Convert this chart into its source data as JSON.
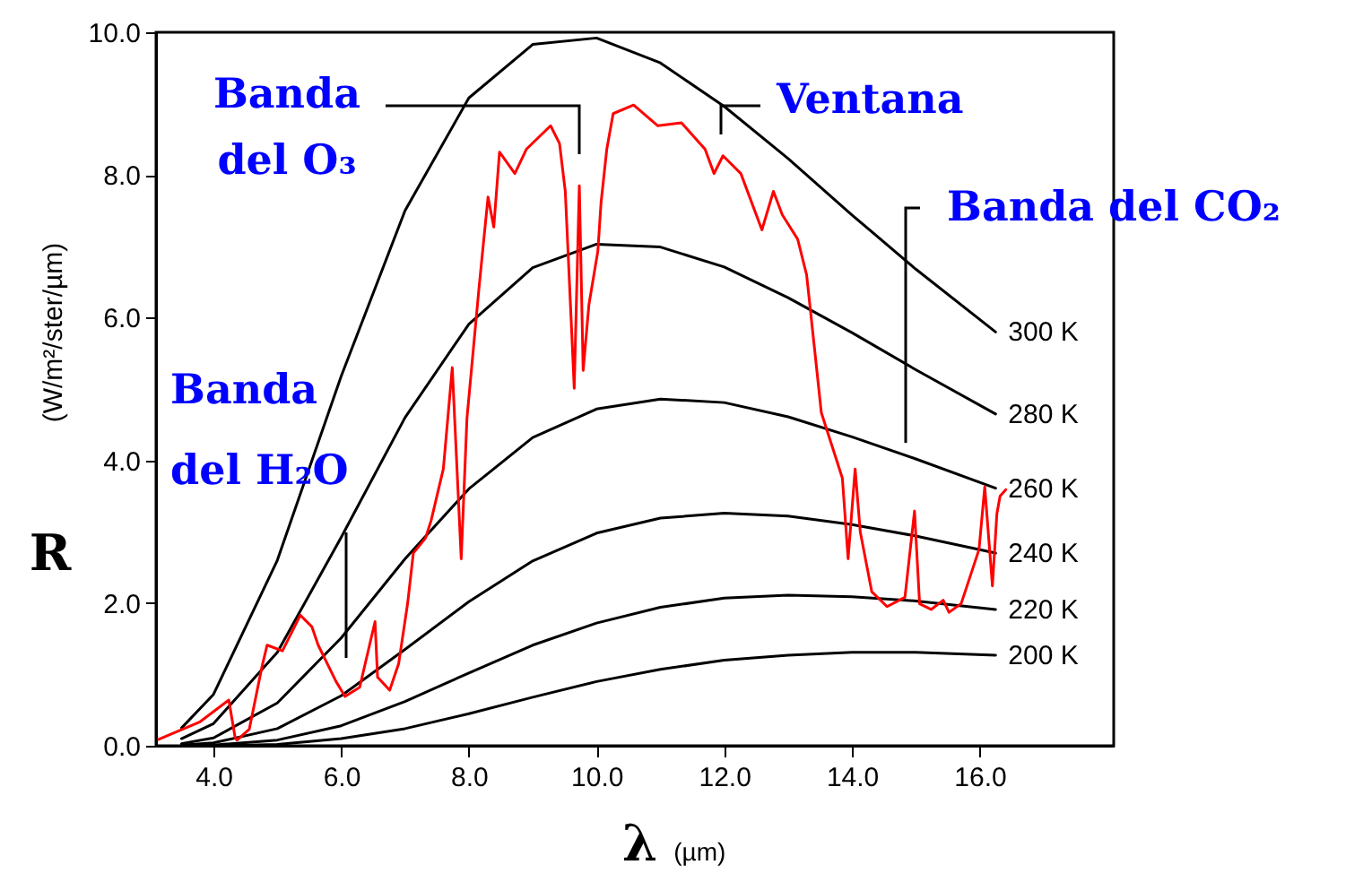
{
  "chart_data": {
    "type": "line",
    "xlabel": "λ (µm)",
    "ylabel": "(W/m²/ster/µm)",
    "xlim": [
      3.1,
      18.1
    ],
    "ylim": [
      0,
      10
    ],
    "xticks": [
      {
        "value": 4,
        "label": "4.0"
      },
      {
        "value": 6,
        "label": "6.0"
      },
      {
        "value": 8,
        "label": "8.0"
      },
      {
        "value": 10,
        "label": "10.0"
      },
      {
        "value": 12,
        "label": "12.0"
      },
      {
        "value": 14,
        "label": "14.0"
      },
      {
        "value": 16,
        "label": "16.0"
      }
    ],
    "yticks": [
      {
        "value": 0,
        "label": "0.0"
      },
      {
        "value": 2,
        "label": "2.0"
      },
      {
        "value": 4,
        "label": "4.0"
      },
      {
        "value": 6,
        "label": "6.0"
      },
      {
        "value": 8,
        "label": "8.0"
      },
      {
        "value": 10,
        "label": "10.0"
      }
    ],
    "x": [
      3.5,
      4,
      5,
      6,
      7,
      8,
      9,
      10,
      11,
      12,
      13,
      14,
      15,
      16.25
    ],
    "series": [
      {
        "name": "300 K",
        "color": "#000000",
        "values": [
          0.25,
          0.72,
          2.6,
          5.18,
          7.5,
          9.08,
          9.83,
          9.92,
          9.57,
          8.96,
          8.23,
          7.44,
          6.68,
          5.8
        ]
      },
      {
        "name": "280 K",
        "color": "#000000",
        "values": [
          0.1,
          0.31,
          1.31,
          2.92,
          4.6,
          5.91,
          6.7,
          7.03,
          6.99,
          6.71,
          6.28,
          5.79,
          5.27,
          4.65
        ]
      },
      {
        "name": "260 K",
        "color": "#000000",
        "values": [
          0.03,
          0.11,
          0.6,
          1.51,
          2.62,
          3.6,
          4.32,
          4.72,
          4.86,
          4.81,
          4.61,
          4.33,
          4.02,
          3.61
        ]
      },
      {
        "name": "240 K",
        "color": "#000000",
        "values": [
          0.01,
          0.04,
          0.24,
          0.7,
          1.35,
          2.02,
          2.59,
          2.98,
          3.19,
          3.26,
          3.22,
          3.1,
          2.94,
          2.7
        ]
      },
      {
        "name": "220 K",
        "color": "#000000",
        "values": [
          0,
          0.01,
          0.08,
          0.28,
          0.62,
          1.02,
          1.41,
          1.72,
          1.94,
          2.07,
          2.11,
          2.09,
          2.03,
          1.91
        ]
      },
      {
        "name": "200 K",
        "color": "#000000",
        "values": [
          0,
          0,
          0.02,
          0.1,
          0.24,
          0.45,
          0.68,
          0.9,
          1.07,
          1.2,
          1.27,
          1.31,
          1.31,
          1.27
        ]
      },
      {
        "color": "#ff0000",
        "x": [
          3.14,
          3.78,
          4.24,
          4.34,
          4.37,
          4.56,
          4.76,
          4.84,
          5.08,
          5.36,
          5.54,
          5.64,
          5.92,
          6.06,
          6.29,
          6.53,
          6.57,
          6.76,
          6.9,
          7.04,
          7.13,
          7.32,
          7.41,
          7.6,
          7.74,
          7.88,
          7.97,
          8.16,
          8.3,
          8.39,
          8.48,
          8.72,
          8.9,
          9.28,
          9.42,
          9.51,
          9.6,
          9.65,
          9.73,
          9.79,
          9.88,
          10.02,
          10.07,
          10.16,
          10.26,
          10.58,
          10.96,
          11.33,
          11.7,
          11.84,
          11.98,
          12.26,
          12.59,
          12.77,
          12.91,
          13.15,
          13.29,
          13.43,
          13.52,
          13.61,
          13.85,
          13.94,
          14.05,
          14.13,
          14.31,
          14.55,
          14.83,
          14.98,
          15.06,
          15.24,
          15.43,
          15.52,
          15.71,
          15.99,
          16.08,
          16.2,
          16.27,
          16.32,
          16.41
        ],
        "values": [
          0.09,
          0.33,
          0.64,
          0.11,
          0.08,
          0.23,
          1.11,
          1.41,
          1.33,
          1.83,
          1.67,
          1.41,
          0.9,
          0.69,
          0.82,
          1.74,
          0.96,
          0.78,
          1.15,
          1.99,
          2.7,
          2.91,
          3.16,
          3.88,
          5.3,
          2.62,
          4.59,
          6.43,
          7.69,
          7.27,
          8.32,
          8.02,
          8.36,
          8.69,
          8.44,
          7.77,
          6.01,
          5.01,
          7.85,
          5.26,
          6.18,
          6.93,
          7.61,
          8.36,
          8.86,
          8.98,
          8.69,
          8.73,
          8.36,
          8.02,
          8.27,
          8.02,
          7.23,
          7.77,
          7.44,
          7.1,
          6.6,
          5.43,
          4.67,
          4.42,
          3.75,
          2.62,
          3.88,
          3.0,
          2.16,
          1.95,
          2.08,
          3.29,
          1.99,
          1.91,
          2.04,
          1.87,
          1.99,
          2.75,
          3.63,
          2.24,
          3.25,
          3.5,
          3.59
        ]
      }
    ],
    "annotations": [
      "Banda del O₃",
      "Ventana",
      "Banda del CO₂",
      "Banda del H₂O",
      "R"
    ]
  }
}
